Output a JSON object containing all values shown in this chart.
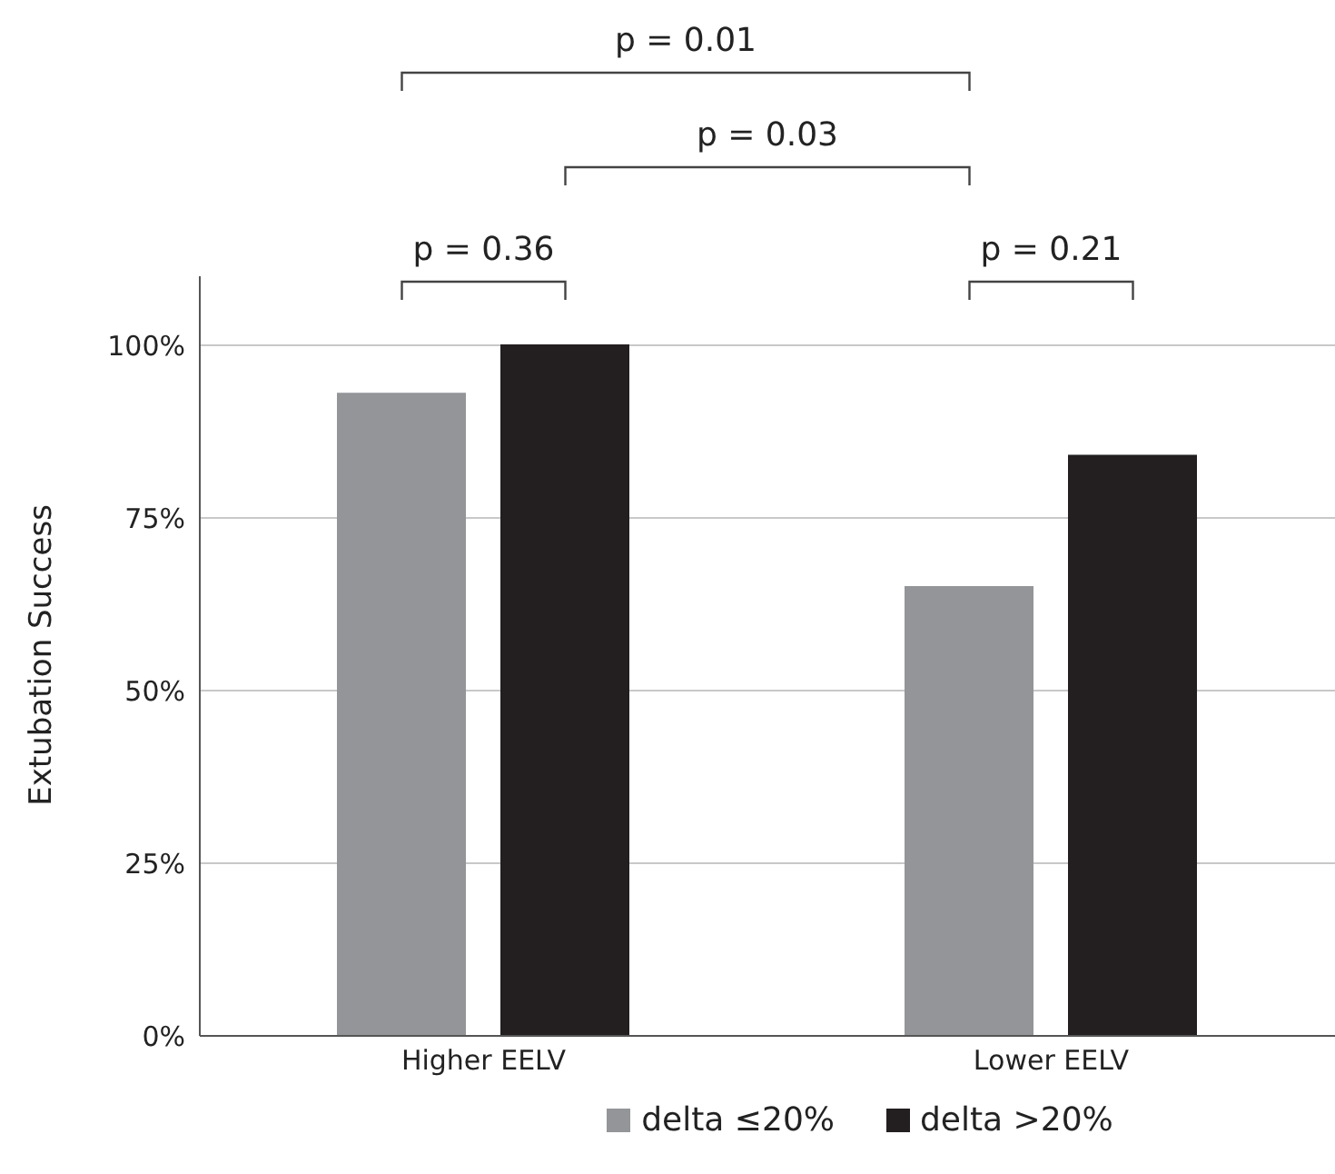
{
  "chart_data": {
    "type": "bar",
    "ylabel": "Extubation Success",
    "categories": [
      "Higher EELV",
      "Lower EELV"
    ],
    "series": [
      {
        "name": "delta ≤20%",
        "color": "#939598",
        "values": [
          93,
          65
        ]
      },
      {
        "name": "delta >20%",
        "color": "#231f20",
        "values": [
          100,
          84
        ]
      }
    ],
    "ylim": [
      0,
      110
    ],
    "yticks": [
      {
        "value": 0,
        "label": "0%"
      },
      {
        "value": 25,
        "label": "25%"
      },
      {
        "value": 50,
        "label": "50%"
      },
      {
        "value": 75,
        "label": "75%"
      },
      {
        "value": 100,
        "label": "100%"
      }
    ],
    "grid": "y",
    "legend": "bottom",
    "annotations": [
      "p = 0.01",
      "p = 0.03",
      "p = 0.36",
      "p = 0.21"
    ]
  }
}
